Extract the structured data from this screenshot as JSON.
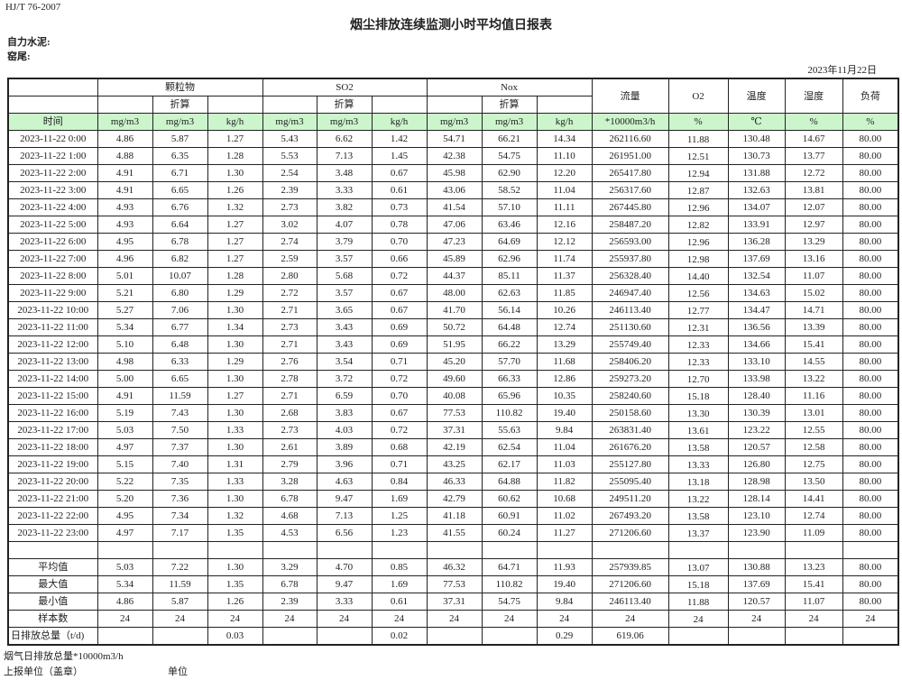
{
  "standard": "HJ/T  76-2007",
  "title": "烟尘排放连续监测小时平均值日报表",
  "company": "自力水泥:",
  "kiln": "窑尾:",
  "date": "2023年11月22日",
  "header": {
    "groups": {
      "pm": "颗粒物",
      "so2": "SO2",
      "nox": "Nox"
    },
    "converted": "折算",
    "flow": "流量",
    "o2": "O2",
    "temp": "温度",
    "humidity": "湿度",
    "load": "负荷",
    "time": "时间",
    "units": [
      "mg/m3",
      "mg/m3",
      "kg/h",
      "mg/m3",
      "mg/m3",
      "kg/h",
      "mg/m3",
      "mg/m3",
      "kg/h",
      "*10000m3/h",
      "%",
      "℃",
      "%",
      "%"
    ]
  },
  "rows": [
    [
      "2023-11-22 0:00",
      "4.86",
      "5.87",
      "1.27",
      "5.43",
      "6.62",
      "1.42",
      "54.71",
      "66.21",
      "14.34",
      "262116.60",
      "11.88",
      "130.48",
      "14.67",
      "80.00"
    ],
    [
      "2023-11-22 1:00",
      "4.88",
      "6.35",
      "1.28",
      "5.53",
      "7.13",
      "1.45",
      "42.38",
      "54.75",
      "11.10",
      "261951.00",
      "12.51",
      "130.73",
      "13.77",
      "80.00"
    ],
    [
      "2023-11-22 2:00",
      "4.91",
      "6.71",
      "1.30",
      "2.54",
      "3.48",
      "0.67",
      "45.98",
      "62.90",
      "12.20",
      "265417.80",
      "12.94",
      "131.88",
      "12.72",
      "80.00"
    ],
    [
      "2023-11-22 3:00",
      "4.91",
      "6.65",
      "1.26",
      "2.39",
      "3.33",
      "0.61",
      "43.06",
      "58.52",
      "11.04",
      "256317.60",
      "12.87",
      "132.63",
      "13.81",
      "80.00"
    ],
    [
      "2023-11-22 4:00",
      "4.93",
      "6.76",
      "1.32",
      "2.73",
      "3.82",
      "0.73",
      "41.54",
      "57.10",
      "11.11",
      "267445.80",
      "12.96",
      "134.07",
      "12.07",
      "80.00"
    ],
    [
      "2023-11-22 5:00",
      "4.93",
      "6.64",
      "1.27",
      "3.02",
      "4.07",
      "0.78",
      "47.06",
      "63.46",
      "12.16",
      "258487.20",
      "12.82",
      "133.91",
      "12.97",
      "80.00"
    ],
    [
      "2023-11-22 6:00",
      "4.95",
      "6.78",
      "1.27",
      "2.74",
      "3.79",
      "0.70",
      "47.23",
      "64.69",
      "12.12",
      "256593.00",
      "12.96",
      "136.28",
      "13.29",
      "80.00"
    ],
    [
      "2023-11-22 7:00",
      "4.96",
      "6.82",
      "1.27",
      "2.59",
      "3.57",
      "0.66",
      "45.89",
      "62.96",
      "11.74",
      "255937.80",
      "12.98",
      "137.69",
      "13.16",
      "80.00"
    ],
    [
      "2023-11-22 8:00",
      "5.01",
      "10.07",
      "1.28",
      "2.80",
      "5.68",
      "0.72",
      "44.37",
      "85.11",
      "11.37",
      "256328.40",
      "14.40",
      "132.54",
      "11.07",
      "80.00"
    ],
    [
      "2023-11-22 9:00",
      "5.21",
      "6.80",
      "1.29",
      "2.72",
      "3.57",
      "0.67",
      "48.00",
      "62.63",
      "11.85",
      "246947.40",
      "12.56",
      "134.63",
      "15.02",
      "80.00"
    ],
    [
      "2023-11-22 10:00",
      "5.27",
      "7.06",
      "1.30",
      "2.71",
      "3.65",
      "0.67",
      "41.70",
      "56.14",
      "10.26",
      "246113.40",
      "12.77",
      "134.47",
      "14.71",
      "80.00"
    ],
    [
      "2023-11-22 11:00",
      "5.34",
      "6.77",
      "1.34",
      "2.73",
      "3.43",
      "0.69",
      "50.72",
      "64.48",
      "12.74",
      "251130.60",
      "12.31",
      "136.56",
      "13.39",
      "80.00"
    ],
    [
      "2023-11-22 12:00",
      "5.10",
      "6.48",
      "1.30",
      "2.71",
      "3.43",
      "0.69",
      "51.95",
      "66.22",
      "13.29",
      "255749.40",
      "12.33",
      "134.66",
      "15.41",
      "80.00"
    ],
    [
      "2023-11-22 13:00",
      "4.98",
      "6.33",
      "1.29",
      "2.76",
      "3.54",
      "0.71",
      "45.20",
      "57.70",
      "11.68",
      "258406.20",
      "12.33",
      "133.10",
      "14.55",
      "80.00"
    ],
    [
      "2023-11-22 14:00",
      "5.00",
      "6.65",
      "1.30",
      "2.78",
      "3.72",
      "0.72",
      "49.60",
      "66.33",
      "12.86",
      "259273.20",
      "12.70",
      "133.98",
      "13.22",
      "80.00"
    ],
    [
      "2023-11-22 15:00",
      "4.91",
      "11.59",
      "1.27",
      "2.71",
      "6.59",
      "0.70",
      "40.08",
      "65.96",
      "10.35",
      "258240.60",
      "15.18",
      "128.40",
      "11.16",
      "80.00"
    ],
    [
      "2023-11-22 16:00",
      "5.19",
      "7.43",
      "1.30",
      "2.68",
      "3.83",
      "0.67",
      "77.53",
      "110.82",
      "19.40",
      "250158.60",
      "13.30",
      "130.39",
      "13.01",
      "80.00"
    ],
    [
      "2023-11-22 17:00",
      "5.03",
      "7.50",
      "1.33",
      "2.73",
      "4.03",
      "0.72",
      "37.31",
      "55.63",
      "9.84",
      "263831.40",
      "13.61",
      "123.22",
      "12.55",
      "80.00"
    ],
    [
      "2023-11-22 18:00",
      "4.97",
      "7.37",
      "1.30",
      "2.61",
      "3.89",
      "0.68",
      "42.19",
      "62.54",
      "11.04",
      "261676.20",
      "13.58",
      "120.57",
      "12.58",
      "80.00"
    ],
    [
      "2023-11-22 19:00",
      "5.15",
      "7.40",
      "1.31",
      "2.79",
      "3.96",
      "0.71",
      "43.25",
      "62.17",
      "11.03",
      "255127.80",
      "13.33",
      "126.80",
      "12.75",
      "80.00"
    ],
    [
      "2023-11-22 20:00",
      "5.22",
      "7.35",
      "1.33",
      "3.28",
      "4.63",
      "0.84",
      "46.33",
      "64.88",
      "11.82",
      "255095.40",
      "13.18",
      "128.98",
      "13.50",
      "80.00"
    ],
    [
      "2023-11-22 21:00",
      "5.20",
      "7.36",
      "1.30",
      "6.78",
      "9.47",
      "1.69",
      "42.79",
      "60.62",
      "10.68",
      "249511.20",
      "13.22",
      "128.14",
      "14.41",
      "80.00"
    ],
    [
      "2023-11-22 22:00",
      "4.95",
      "7.34",
      "1.32",
      "4.68",
      "7.13",
      "1.25",
      "41.18",
      "60.91",
      "11.02",
      "267493.20",
      "13.58",
      "123.10",
      "12.74",
      "80.00"
    ],
    [
      "2023-11-22 23:00",
      "4.97",
      "7.17",
      "1.35",
      "4.53",
      "6.56",
      "1.23",
      "41.55",
      "60.24",
      "11.27",
      "271206.60",
      "13.37",
      "123.90",
      "11.09",
      "80.00"
    ]
  ],
  "summary": [
    [
      "平均值",
      "5.03",
      "7.22",
      "1.30",
      "3.29",
      "4.70",
      "0.85",
      "46.32",
      "64.71",
      "11.93",
      "257939.85",
      "13.07",
      "130.88",
      "13.23",
      "80.00"
    ],
    [
      "最大值",
      "5.34",
      "11.59",
      "1.35",
      "6.78",
      "9.47",
      "1.69",
      "77.53",
      "110.82",
      "19.40",
      "271206.60",
      "15.18",
      "137.69",
      "15.41",
      "80.00"
    ],
    [
      "最小值",
      "4.86",
      "5.87",
      "1.26",
      "2.39",
      "3.33",
      "0.61",
      "37.31",
      "54.75",
      "9.84",
      "246113.40",
      "11.88",
      "120.57",
      "11.07",
      "80.00"
    ],
    [
      "样本数",
      "24",
      "24",
      "24",
      "24",
      "24",
      "24",
      "24",
      "24",
      "24",
      "24",
      "24",
      "24",
      "24",
      "24"
    ],
    [
      "日排放总量（t/d)",
      "",
      "",
      "0.03",
      "",
      "",
      "0.02",
      "",
      "",
      "0.29",
      "619.06",
      "",
      "",
      "",
      ""
    ]
  ],
  "footer": {
    "flue_gas_total": "烟气日排放总量*10000m3/h",
    "reporting_unit": "上报单位（盖章）",
    "unit": "单位"
  }
}
